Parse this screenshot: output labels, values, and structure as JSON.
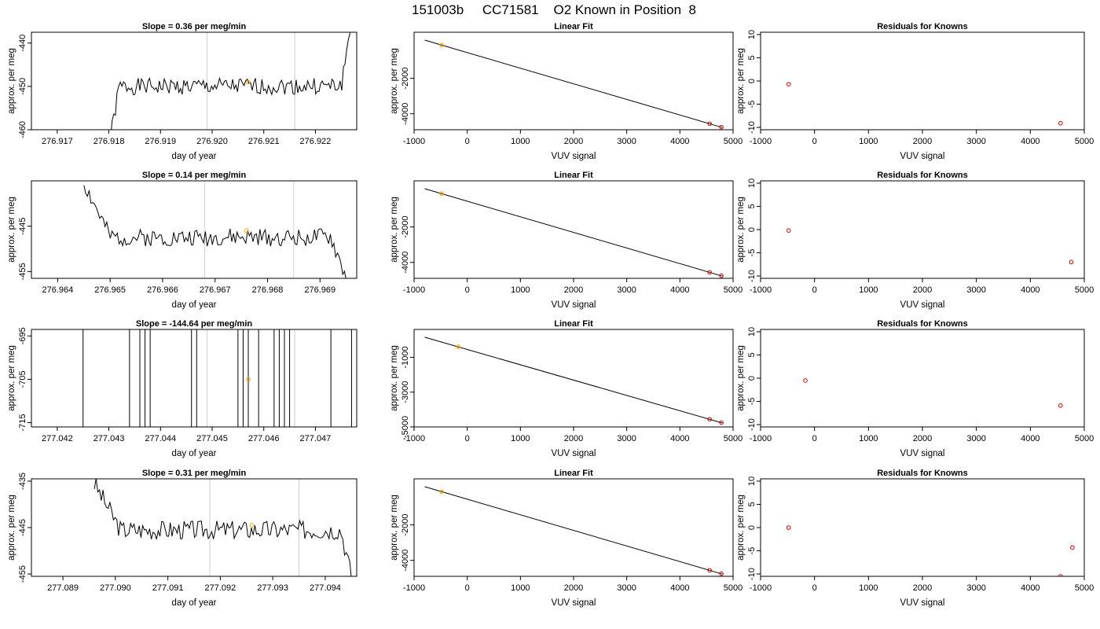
{
  "page_title": "151003b     CC71581    O2 Known in Position  8",
  "colors": {
    "trace": "#000000",
    "frame": "#000000",
    "vline": "#cccccc",
    "orange": "#ffa500",
    "red": "#cc0000"
  },
  "chart_data": [
    {
      "row": 1,
      "type": "line",
      "title": "Slope =  0.36  per meg/min",
      "xlabel": "day of year",
      "ylabel": "approx. per meg",
      "xlim": [
        276.9165,
        276.9228
      ],
      "ylim": [
        -460,
        -437.5
      ],
      "xticks": [
        276.917,
        276.918,
        276.919,
        276.92,
        276.921,
        276.922
      ],
      "xtick_labels": [
        "276.917",
        "276.918",
        "276.919",
        "276.920",
        "276.921",
        "276.922"
      ],
      "yticks": [
        -460,
        -450,
        -440
      ],
      "ytick_labels": [
        "-460",
        "-450",
        "-440"
      ],
      "vlines": [
        276.9199,
        276.9216
      ],
      "marker": {
        "x": 276.9207,
        "y": -449.0
      },
      "trace": {
        "x_start": 276.918,
        "x_end": 276.9227,
        "n": 150,
        "base": -450,
        "slope": 0.36,
        "amp": 1.2,
        "rise_end": 276.9182,
        "rise_depth": 14,
        "tail_start": 276.9225,
        "tail_height": 15,
        "seed": 1
      }
    },
    {
      "row": 1,
      "type": "scatter",
      "title": "Linear Fit",
      "xlabel": "VUV signal",
      "ylabel": "approx. per meg",
      "xlim": [
        -1000,
        5000
      ],
      "ylim": [
        -4900,
        600
      ],
      "xticks": [
        -1000,
        0,
        1000,
        2000,
        3000,
        4000,
        5000
      ],
      "xtick_labels": [
        "-1000",
        "0",
        "1000",
        "2000",
        "3000",
        "4000",
        "5000"
      ],
      "yticks": [
        -4000,
        -2000
      ],
      "ytick_labels": [
        "-4000",
        "-2000"
      ],
      "fit_line": {
        "x0": -800,
        "y0": 155,
        "x1": 4800,
        "y1": -4775
      },
      "points_orange": [
        {
          "x": -480,
          "y": -125
        }
      ],
      "points_red": [
        {
          "x": 4560,
          "y": -4563
        },
        {
          "x": 4780,
          "y": -4753
        }
      ]
    },
    {
      "row": 1,
      "type": "scatter",
      "title": "Residuals for Knowns",
      "xlabel": "VUV signal",
      "ylabel": "approx. per meg",
      "xlim": [
        -1000,
        5000
      ],
      "ylim": [
        -10.5,
        10.5
      ],
      "xticks": [
        -1000,
        0,
        1000,
        2000,
        3000,
        4000,
        5000
      ],
      "xtick_labels": [
        "-1000",
        "0",
        "1000",
        "2000",
        "3000",
        "4000",
        "5000"
      ],
      "yticks": [
        -10,
        -5,
        0,
        5,
        10
      ],
      "ytick_labels": [
        "-10",
        "-5",
        "0",
        "5",
        "10"
      ],
      "points_red": [
        {
          "x": -480,
          "y": -0.7
        },
        {
          "x": 4560,
          "y": -9.1
        }
      ]
    },
    {
      "row": 2,
      "type": "line",
      "title": "Slope =  0.14  per meg/min",
      "xlabel": "day of year",
      "ylabel": "approx. per meg",
      "xlim": [
        276.9635,
        276.9697
      ],
      "ylim": [
        -456.5,
        -435
      ],
      "xticks": [
        276.964,
        276.965,
        276.966,
        276.967,
        276.968,
        276.969
      ],
      "xtick_labels": [
        "276.964",
        "276.965",
        "276.966",
        "276.967",
        "276.968",
        "276.969"
      ],
      "yticks": [
        -455,
        -445
      ],
      "ytick_labels": [
        "-455",
        "-445"
      ],
      "vlines": [
        276.9668,
        276.9685
      ],
      "marker": {
        "x": 276.9676,
        "y": -446
      },
      "trace": {
        "x_start": 276.9645,
        "x_end": 276.9695,
        "n": 150,
        "base": -447.5,
        "slope": 0.14,
        "amp": 1.2,
        "rise_end": 276.965,
        "rise_depth": -12,
        "tail_start": 276.9692,
        "tail_height": -9,
        "seed": 2
      }
    },
    {
      "row": 2,
      "type": "scatter",
      "title": "Linear Fit",
      "xlabel": "VUV signal",
      "ylabel": "approx. per meg",
      "xlim": [
        -1000,
        5000
      ],
      "ylim": [
        -4900,
        600
      ],
      "xticks": [
        -1000,
        0,
        1000,
        2000,
        3000,
        4000,
        5000
      ],
      "xtick_labels": [
        "-1000",
        "0",
        "1000",
        "2000",
        "3000",
        "4000",
        "5000"
      ],
      "yticks": [
        -4000,
        -2000
      ],
      "ytick_labels": [
        "-4000",
        "-2000"
      ],
      "fit_line": {
        "x0": -800,
        "y0": 155,
        "x1": 4800,
        "y1": -4775
      },
      "points_orange": [
        {
          "x": -480,
          "y": -125
        }
      ],
      "points_red": [
        {
          "x": 4560,
          "y": -4563
        },
        {
          "x": 4780,
          "y": -4753
        }
      ]
    },
    {
      "row": 2,
      "type": "scatter",
      "title": "Residuals for Knowns",
      "xlabel": "VUV signal",
      "ylabel": "approx. per meg",
      "xlim": [
        -1000,
        5000
      ],
      "ylim": [
        -10.5,
        10.5
      ],
      "xticks": [
        -1000,
        0,
        1000,
        2000,
        3000,
        4000,
        5000
      ],
      "xtick_labels": [
        "-1000",
        "0",
        "1000",
        "2000",
        "3000",
        "4000",
        "5000"
      ],
      "yticks": [
        -10,
        -5,
        0,
        5,
        10
      ],
      "ytick_labels": [
        "-10",
        "-5",
        "0",
        "5",
        "10"
      ],
      "points_red": [
        {
          "x": -480,
          "y": -0.2
        },
        {
          "x": 4760,
          "y": -7.0
        }
      ]
    },
    {
      "row": 3,
      "type": "line",
      "title": "Slope =  -144.64  per meg/min",
      "xlabel": "day of year",
      "ylabel": "approx. per meg",
      "xlim": [
        277.0415,
        277.0478
      ],
      "ylim": [
        -716,
        -693.5
      ],
      "xticks": [
        277.042,
        277.043,
        277.044,
        277.045,
        277.046,
        277.047
      ],
      "xtick_labels": [
        "277.042",
        "277.043",
        "277.044",
        "277.045",
        "277.046",
        "277.047"
      ],
      "yticks": [
        -715,
        -705,
        -695
      ],
      "ytick_labels": [
        "-715",
        "-705",
        "-695"
      ],
      "vlines": [
        277.0449,
        277.0466
      ],
      "marker": {
        "x": 277.0457,
        "y": -705
      },
      "spikes": [
        277.0425,
        277.0434,
        277.0436,
        277.0437,
        277.0438,
        277.0446,
        277.0447,
        277.0455,
        277.0456,
        277.0457,
        277.0459,
        277.0462,
        277.0463,
        277.0464,
        277.0465,
        277.0473,
        277.0477
      ]
    },
    {
      "row": 3,
      "type": "scatter",
      "title": "Linear Fit",
      "xlabel": "VUV signal",
      "ylabel": "approx. per meg",
      "xlim": [
        -1000,
        5000
      ],
      "ylim": [
        -5000,
        600
      ],
      "xticks": [
        -1000,
        0,
        1000,
        2000,
        3000,
        4000,
        5000
      ],
      "xtick_labels": [
        "-1000",
        "0",
        "1000",
        "2000",
        "3000",
        "4000",
        "5000"
      ],
      "yticks": [
        -5000,
        -3000,
        -1000
      ],
      "ytick_labels": [
        "-5000",
        "-3000",
        "-1000"
      ],
      "fit_line": {
        "x0": -800,
        "y0": 155,
        "x1": 4800,
        "y1": -4775
      },
      "points_orange": [
        {
          "x": -170,
          "y": -400
        }
      ],
      "points_red": [
        {
          "x": 4560,
          "y": -4563
        },
        {
          "x": 4780,
          "y": -4753
        }
      ]
    },
    {
      "row": 3,
      "type": "scatter",
      "title": "Residuals for Knowns",
      "xlabel": "VUV signal",
      "ylabel": "approx. per meg",
      "xlim": [
        -1000,
        5000
      ],
      "ylim": [
        -10.5,
        10.5
      ],
      "xticks": [
        -1000,
        0,
        1000,
        2000,
        3000,
        4000,
        5000
      ],
      "xtick_labels": [
        "-1000",
        "0",
        "1000",
        "2000",
        "3000",
        "4000",
        "5000"
      ],
      "yticks": [
        -10,
        -5,
        0,
        5,
        10
      ],
      "ytick_labels": [
        "-10",
        "-5",
        "0",
        "5",
        "10"
      ],
      "points_red": [
        {
          "x": -170,
          "y": -0.5
        },
        {
          "x": 4560,
          "y": -5.9
        }
      ]
    },
    {
      "row": 4,
      "type": "line",
      "title": "Slope =  0.31  per meg/min",
      "xlabel": "day of year",
      "ylabel": "approx. per meg",
      "xlim": [
        277.0884,
        277.0946
      ],
      "ylim": [
        -455.5,
        -434.5
      ],
      "xticks": [
        277.089,
        277.09,
        277.091,
        277.092,
        277.093,
        277.094
      ],
      "xtick_labels": [
        "277.089",
        "277.090",
        "277.091",
        "277.092",
        "277.093",
        "277.094"
      ],
      "yticks": [
        -455,
        -445,
        -435
      ],
      "ytick_labels": [
        "-455",
        "-445",
        "-435"
      ],
      "vlines": [
        277.0918,
        277.0935
      ],
      "marker": {
        "x": 277.0926,
        "y": -444.5
      },
      "trace": {
        "x_start": 277.0896,
        "x_end": 277.0945,
        "n": 150,
        "base": -445.5,
        "slope": 0.31,
        "amp": 1.3,
        "rise_end": 277.0901,
        "rise_depth": -10,
        "tail_start": 277.0943,
        "tail_height": -10,
        "seed": 3
      }
    },
    {
      "row": 4,
      "type": "scatter",
      "title": "Linear Fit",
      "xlabel": "VUV signal",
      "ylabel": "approx. per meg",
      "xlim": [
        -1000,
        5000
      ],
      "ylim": [
        -4900,
        600
      ],
      "xticks": [
        -1000,
        0,
        1000,
        2000,
        3000,
        4000,
        5000
      ],
      "xtick_labels": [
        "-1000",
        "0",
        "1000",
        "2000",
        "3000",
        "4000",
        "5000"
      ],
      "yticks": [
        -4000,
        -2000
      ],
      "ytick_labels": [
        "-4000",
        "-2000"
      ],
      "fit_line": {
        "x0": -800,
        "y0": 155,
        "x1": 4800,
        "y1": -4775
      },
      "points_orange": [
        {
          "x": -480,
          "y": -125
        }
      ],
      "points_red": [
        {
          "x": 4560,
          "y": -4563
        },
        {
          "x": 4780,
          "y": -4753
        }
      ]
    },
    {
      "row": 4,
      "type": "scatter",
      "title": "Residuals for Knowns",
      "xlabel": "VUV signal",
      "ylabel": "approx. per meg",
      "xlim": [
        -1000,
        5000
      ],
      "ylim": [
        -10.5,
        10.5
      ],
      "xticks": [
        -1000,
        0,
        1000,
        2000,
        3000,
        4000,
        5000
      ],
      "xtick_labels": [
        "-1000",
        "0",
        "1000",
        "2000",
        "3000",
        "4000",
        "5000"
      ],
      "yticks": [
        -10,
        -5,
        0,
        5,
        10
      ],
      "ytick_labels": [
        "-10",
        "-5",
        "0",
        "5",
        "10"
      ],
      "points_red": [
        {
          "x": -480,
          "y": 0.0
        },
        {
          "x": 4780,
          "y": -4.3
        },
        {
          "x": 4560,
          "y": -10.5
        }
      ]
    }
  ]
}
